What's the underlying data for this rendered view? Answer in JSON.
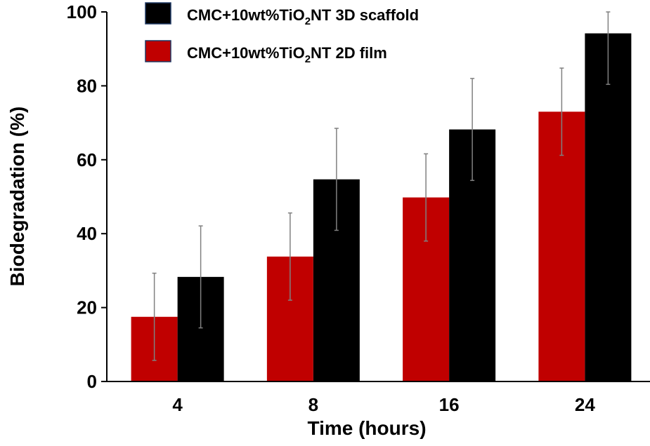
{
  "chart_data": {
    "type": "bar",
    "xlabel": "Time (hours)",
    "ylabel": "Biodegradation  (%)",
    "ylim": [
      0,
      100
    ],
    "yticks": [
      0,
      20,
      40,
      60,
      80,
      100
    ],
    "grid": false,
    "legend_position": "top",
    "categories": [
      "4",
      "8",
      "16",
      "24"
    ],
    "series": [
      {
        "name": "CMC+10wt%TiO₂NT 2D film",
        "legend_prefix": "CMC+10wt%TiO",
        "legend_sub": "2",
        "legend_suffix": "NT 2D film",
        "color": "#c00000",
        "values": [
          17.5,
          33.8,
          49.8,
          73.0
        ],
        "errors": [
          11.8,
          11.8,
          11.8,
          11.8
        ]
      },
      {
        "name": "CMC+10wt%TiO₂NT 3D scaffold",
        "legend_prefix": "CMC+10wt%TiO",
        "legend_sub": "2",
        "legend_suffix": "NT 3D scaffold",
        "color": "#000000",
        "values": [
          28.3,
          54.7,
          68.2,
          94.2
        ],
        "errors": [
          13.8,
          13.8,
          13.8,
          13.8
        ]
      }
    ]
  }
}
